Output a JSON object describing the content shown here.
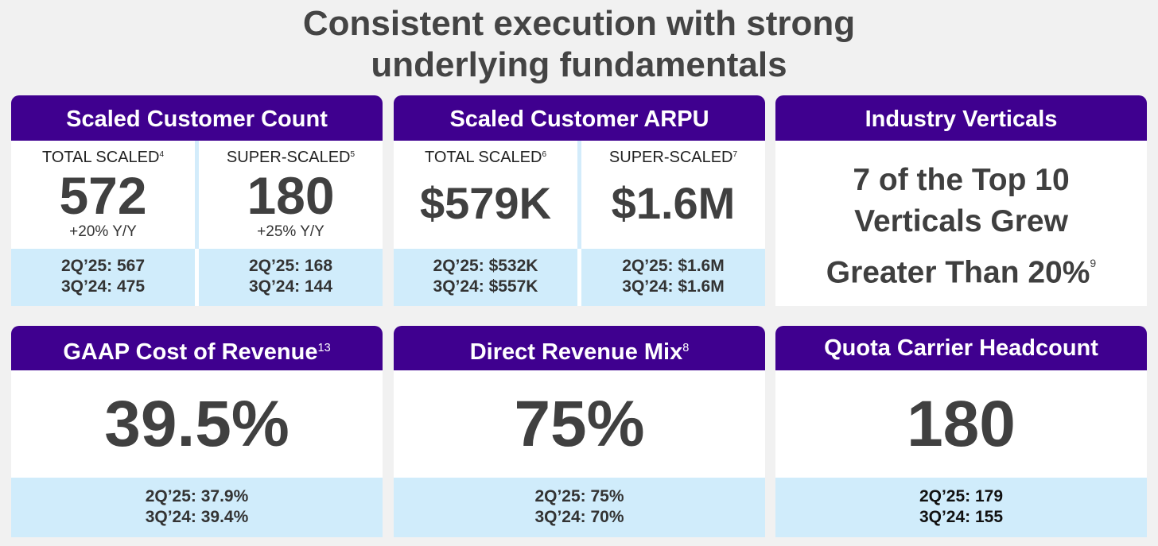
{
  "title_line1": "Consistent execution with strong",
  "title_line2": "underlying fundamentals",
  "cards": {
    "count": {
      "title": "Scaled Customer Count",
      "left": {
        "label": "TOTAL SCALED",
        "note": "4",
        "value": "572",
        "yoy": "+20% Y/Y",
        "prev1": "2Q’25: 567",
        "prev2": "3Q’24: 475"
      },
      "right": {
        "label": "SUPER-SCALED",
        "note": "5",
        "value": "180",
        "yoy": "+25% Y/Y",
        "prev1": "2Q’25: 168",
        "prev2": "3Q’24: 144"
      }
    },
    "arpu": {
      "title": "Scaled Customer ARPU",
      "left": {
        "label": "TOTAL SCALED",
        "note": "6",
        "value": "$579K",
        "prev1": "2Q’25: $532K",
        "prev2": "3Q’24: $557K"
      },
      "right": {
        "label": "SUPER-SCALED",
        "note": "7",
        "value": "$1.6M",
        "prev1": "2Q’25: $1.6M",
        "prev2": "3Q’24: $1.6M"
      }
    },
    "verticals": {
      "title": "Industry Verticals",
      "line1": "7 of the Top 10",
      "line2": "Verticals Grew",
      "line3": "Greater Than 20%",
      "note": "9"
    },
    "cost": {
      "title": "GAAP Cost of Revenue",
      "note": "13",
      "value": "39.5%",
      "prev1": "2Q’25: 37.9%",
      "prev2": "3Q’24: 39.4%"
    },
    "mix": {
      "title": "Direct Revenue Mix",
      "note": "8",
      "value": "75%",
      "prev1": "2Q’25: 75%",
      "prev2": "3Q’24: 70%"
    },
    "headcount": {
      "title": "Quota Carrier Headcount",
      "value": "180",
      "prev1": "2Q’25: 179",
      "prev2": "3Q’24: 155"
    }
  },
  "colors": {
    "header": "#3f008f",
    "band": "#d0ecfb",
    "background": "#f1f1f1"
  }
}
